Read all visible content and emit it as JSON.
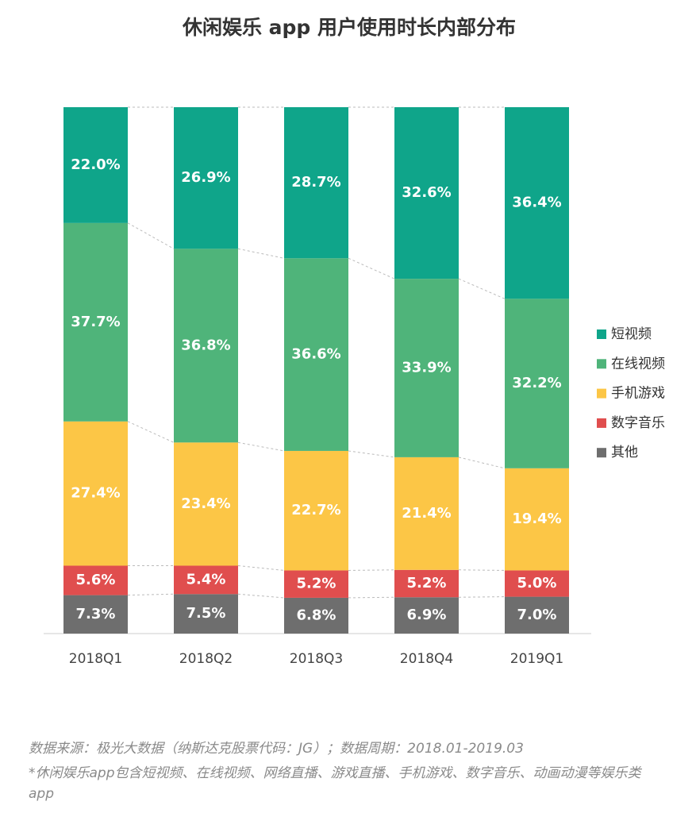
{
  "chart_data": {
    "type": "stacked_bar",
    "title": "休闲娱乐 app 用户使用时长内部分布",
    "categories": [
      "2018Q1",
      "2018Q2",
      "2018Q3",
      "2018Q4",
      "2019Q1"
    ],
    "ylim": [
      0,
      100
    ],
    "series": [
      {
        "name": "短视频",
        "color": "#0fa58a",
        "values": [
          22.0,
          26.9,
          28.7,
          32.6,
          36.4
        ],
        "value_labels": [
          "22.0%",
          "26.9%",
          "28.7%",
          "32.6%",
          "36.4%"
        ]
      },
      {
        "name": "在线视频",
        "color": "#4fb47a",
        "values": [
          37.7,
          36.8,
          36.6,
          33.9,
          32.2
        ],
        "value_labels": [
          "37.7%",
          "36.8%",
          "36.6%",
          "33.9%",
          "32.2%"
        ]
      },
      {
        "name": "手机游戏",
        "color": "#fcc646",
        "values": [
          27.4,
          23.4,
          22.7,
          21.4,
          19.4
        ],
        "value_labels": [
          "27.4%",
          "23.4%",
          "22.7%",
          "21.4%",
          "19.4%"
        ]
      },
      {
        "name": "数字音乐",
        "color": "#e04e4e",
        "values": [
          5.6,
          5.4,
          5.2,
          5.2,
          5.0
        ],
        "value_labels": [
          "5.6%",
          "5.4%",
          "5.2%",
          "5.2%",
          "5.0%"
        ]
      },
      {
        "name": "其他",
        "color": "#6e6e6e",
        "values": [
          7.3,
          7.5,
          6.8,
          6.9,
          7.0
        ],
        "value_labels": [
          "7.3%",
          "7.5%",
          "6.8%",
          "6.9%",
          "7.0%"
        ]
      }
    ],
    "legend": "right",
    "source": "数据来源：极光大数据（纳斯达克股票代码：JG）；数据周期：2018.01-2019.03",
    "note": "*休闲娱乐app包含短视频、在线视频、网络直播、游戏直播、手机游戏、数字音乐、动画动漫等娱乐类app"
  }
}
